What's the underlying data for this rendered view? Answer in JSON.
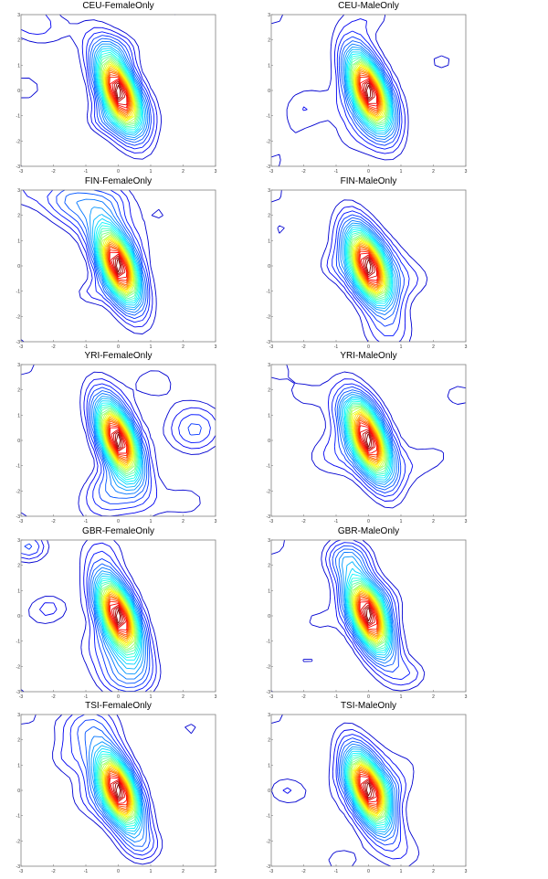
{
  "figure": {
    "layout": {
      "rows": 5,
      "cols": 2
    },
    "colormap": "jet",
    "frame_color": "#808080",
    "background": "#ffffff"
  },
  "chart_data": [
    {
      "type": "contour",
      "title": "CEU-FemaleOnly",
      "xlim": [
        -3,
        3
      ],
      "ylim": [
        -3,
        3
      ],
      "xticks": [
        -3,
        -2,
        -1,
        0,
        1,
        2,
        3
      ],
      "yticks": [
        -3,
        -2,
        -1,
        0,
        1,
        2,
        3
      ],
      "peak": [
        0,
        0
      ],
      "levels": 30,
      "seed": 1
    },
    {
      "type": "contour",
      "title": "CEU-MaleOnly",
      "xlim": [
        -3,
        3
      ],
      "ylim": [
        -3,
        3
      ],
      "xticks": [
        -3,
        -2,
        -1,
        0,
        1,
        2,
        3
      ],
      "yticks": [
        -3,
        -2,
        -1,
        0,
        1,
        2,
        3
      ],
      "peak": [
        0,
        0
      ],
      "levels": 30,
      "seed": 2
    },
    {
      "type": "contour",
      "title": "FIN-FemaleOnly",
      "xlim": [
        -3,
        3
      ],
      "ylim": [
        -3,
        3
      ],
      "xticks": [
        -3,
        -2,
        -1,
        0,
        1,
        2,
        3
      ],
      "yticks": [
        -3,
        -2,
        -1,
        0,
        1,
        2,
        3
      ],
      "peak": [
        0,
        0
      ],
      "levels": 30,
      "seed": 3
    },
    {
      "type": "contour",
      "title": "FIN-MaleOnly",
      "xlim": [
        -3,
        3
      ],
      "ylim": [
        -3,
        3
      ],
      "xticks": [
        -3,
        -2,
        -1,
        0,
        1,
        2,
        3
      ],
      "yticks": [
        -3,
        -2,
        -1,
        0,
        1,
        2,
        3
      ],
      "peak": [
        0,
        0
      ],
      "levels": 30,
      "seed": 4
    },
    {
      "type": "contour",
      "title": "YRI-FemaleOnly",
      "xlim": [
        -3,
        3
      ],
      "ylim": [
        -3,
        3
      ],
      "xticks": [
        -3,
        -2,
        -1,
        0,
        1,
        2,
        3
      ],
      "yticks": [
        -3,
        -2,
        -1,
        0,
        1,
        2,
        3
      ],
      "peak": [
        0,
        0
      ],
      "levels": 30,
      "seed": 5
    },
    {
      "type": "contour",
      "title": "YRI-MaleOnly",
      "xlim": [
        -3,
        3
      ],
      "ylim": [
        -3,
        3
      ],
      "xticks": [
        -3,
        -2,
        -1,
        0,
        1,
        2,
        3
      ],
      "yticks": [
        -3,
        -2,
        -1,
        0,
        1,
        2,
        3
      ],
      "peak": [
        0,
        0
      ],
      "levels": 30,
      "seed": 6
    },
    {
      "type": "contour",
      "title": "GBR-FemaleOnly",
      "xlim": [
        -3,
        3
      ],
      "ylim": [
        -3,
        3
      ],
      "xticks": [
        -3,
        -2,
        -1,
        0,
        1,
        2,
        3
      ],
      "yticks": [
        -3,
        -2,
        -1,
        0,
        1,
        2,
        3
      ],
      "peak": [
        0,
        0
      ],
      "levels": 30,
      "seed": 7
    },
    {
      "type": "contour",
      "title": "GBR-MaleOnly",
      "xlim": [
        -3,
        3
      ],
      "ylim": [
        -3,
        3
      ],
      "xticks": [
        -3,
        -2,
        -1,
        0,
        1,
        2,
        3
      ],
      "yticks": [
        -3,
        -2,
        -1,
        0,
        1,
        2,
        3
      ],
      "peak": [
        0,
        0
      ],
      "levels": 30,
      "seed": 8
    },
    {
      "type": "contour",
      "title": "TSI-FemaleOnly",
      "xlim": [
        -3,
        3
      ],
      "ylim": [
        -3,
        3
      ],
      "xticks": [
        -3,
        -2,
        -1,
        0,
        1,
        2,
        3
      ],
      "yticks": [
        -3,
        -2,
        -1,
        0,
        1,
        2,
        3
      ],
      "peak": [
        0,
        0
      ],
      "levels": 30,
      "seed": 9
    },
    {
      "type": "contour",
      "title": "TSI-MaleOnly",
      "xlim": [
        -3,
        3
      ],
      "ylim": [
        -3,
        3
      ],
      "xticks": [
        -3,
        -2,
        -1,
        0,
        1,
        2,
        3
      ],
      "yticks": [
        -3,
        -2,
        -1,
        0,
        1,
        2,
        3
      ],
      "peak": [
        0,
        0
      ],
      "levels": 30,
      "seed": 10
    }
  ]
}
